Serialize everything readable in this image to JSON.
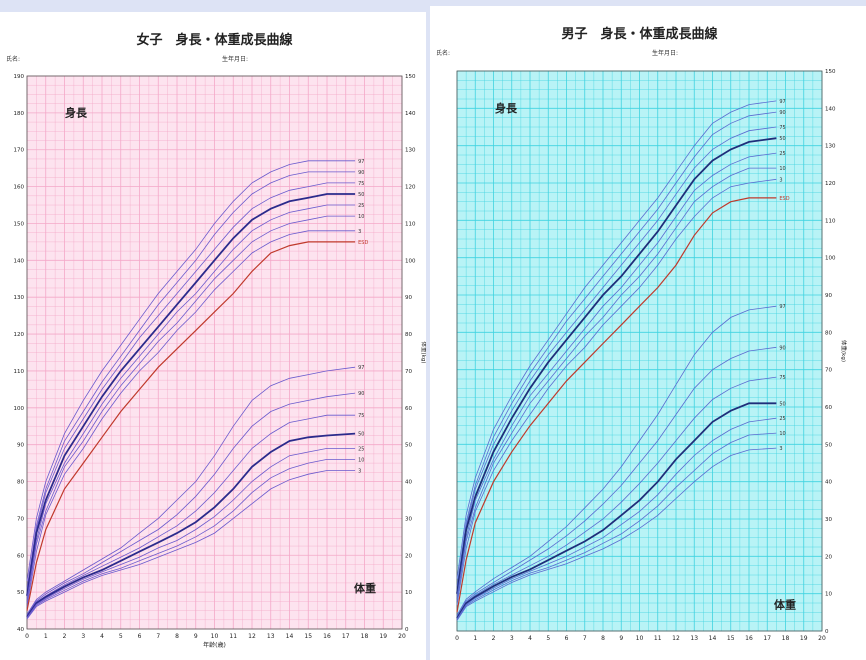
{
  "chart_data": [
    {
      "type": "line",
      "title": "女子　身長・体重成長曲線",
      "name_label": "氏名:",
      "birthdate_label": "生年月日:",
      "height_label": "身長",
      "weight_label": "体重",
      "xlabel": "年齢(歳)",
      "ylabel_right": "体重(kg)",
      "background": "#fde3ef",
      "grid_color": "#f4a8c8",
      "line_color": "#6a5acd",
      "median_color": "#2b2b8c",
      "highlight_color": "#c0392b",
      "xlim": [
        0,
        20
      ],
      "x_ticks": [
        0,
        1,
        2,
        3,
        4,
        5,
        6,
        7,
        8,
        9,
        10,
        11,
        12,
        13,
        14,
        15,
        16,
        17,
        18,
        19,
        20
      ],
      "height_ylim": [
        40,
        190
      ],
      "height_ticks": [
        40,
        50,
        60,
        70,
        80,
        90,
        100,
        110,
        120,
        130,
        140,
        150,
        160,
        170,
        180,
        190
      ],
      "weight_ylim": [
        0,
        150
      ],
      "weight_ticks": [
        0,
        10,
        20,
        30,
        40,
        50,
        60,
        70,
        80,
        90,
        100,
        110,
        120,
        130,
        140,
        150
      ],
      "height_x": [
        0,
        0.5,
        1,
        2,
        3,
        4,
        5,
        6,
        7,
        8,
        9,
        10,
        11,
        12,
        13,
        14,
        15,
        16,
        17.5
      ],
      "height_series": [
        {
          "name": "97",
          "values": [
            53,
            70,
            80,
            93,
            102,
            110,
            117,
            124,
            131,
            137,
            143,
            150,
            156,
            161,
            164,
            166,
            167,
            167,
            167
          ]
        },
        {
          "name": "90",
          "values": [
            51,
            68,
            78,
            91,
            99,
            107,
            114,
            121,
            128,
            134,
            140,
            147,
            153,
            158,
            161,
            163,
            164,
            164,
            164
          ]
        },
        {
          "name": "75",
          "values": [
            50,
            67,
            77,
            89,
            97,
            105,
            112,
            119,
            125,
            131,
            137,
            143,
            149,
            154,
            157,
            159,
            160,
            161,
            161
          ]
        },
        {
          "name": "50",
          "values": [
            49,
            66,
            75,
            87,
            95,
            103,
            110,
            116,
            122,
            128,
            134,
            140,
            146,
            151,
            154,
            156,
            157,
            158,
            158
          ]
        },
        {
          "name": "25",
          "values": [
            48,
            64,
            74,
            85,
            93,
            101,
            108,
            114,
            120,
            126,
            131,
            137,
            143,
            148,
            151,
            153,
            154,
            155,
            155
          ]
        },
        {
          "name": "10",
          "values": [
            47,
            63,
            72,
            84,
            91,
            99,
            106,
            112,
            118,
            123,
            129,
            135,
            140,
            145,
            148,
            150,
            151,
            152,
            152
          ]
        },
        {
          "name": "3",
          "values": [
            46,
            61,
            71,
            82,
            89,
            97,
            104,
            110,
            115,
            121,
            126,
            132,
            137,
            142,
            145,
            147,
            148,
            148,
            148
          ]
        }
      ],
      "height_highlight": {
        "name": "ESD",
        "values": [
          45,
          58,
          67,
          78,
          85,
          92,
          99,
          105,
          111,
          116,
          121,
          126,
          131,
          137,
          142,
          144,
          145,
          145,
          145
        ]
      },
      "weight_x": [
        0,
        0.5,
        1,
        2,
        3,
        4,
        5,
        6,
        7,
        8,
        9,
        10,
        11,
        12,
        13,
        14,
        15,
        16,
        17.5
      ],
      "weight_series": [
        {
          "name": "97",
          "values": [
            4,
            8,
            10,
            13,
            16,
            19,
            22,
            26,
            30,
            35,
            40,
            47,
            55,
            62,
            66,
            68,
            69,
            70,
            71
          ]
        },
        {
          "name": "90",
          "values": [
            3.8,
            7.6,
            9.5,
            12.5,
            15,
            18,
            21,
            24,
            27,
            31,
            36,
            42,
            49,
            55,
            59,
            61,
            62,
            63,
            64
          ]
        },
        {
          "name": "75",
          "values": [
            3.5,
            7.3,
            9,
            12,
            14.5,
            17,
            19.5,
            22,
            25,
            28,
            32,
            37,
            43,
            49,
            53,
            56,
            57,
            58,
            58
          ]
        },
        {
          "name": "50",
          "values": [
            3.3,
            7,
            8.7,
            11.5,
            14,
            16,
            18.5,
            21,
            23.5,
            26,
            29,
            33,
            38,
            44,
            48,
            51,
            52,
            52.5,
            53
          ]
        },
        {
          "name": "25",
          "values": [
            3.1,
            6.7,
            8.3,
            11,
            13.5,
            15.5,
            17.5,
            19.5,
            22,
            24,
            27,
            30.5,
            35,
            40,
            44,
            47,
            48,
            49,
            49
          ]
        },
        {
          "name": "10",
          "values": [
            2.9,
            6.4,
            8,
            10.5,
            13,
            15,
            16.5,
            18.5,
            20.5,
            22.5,
            25,
            28,
            32,
            37,
            41,
            43.5,
            45,
            46,
            46
          ]
        },
        {
          "name": "3",
          "values": [
            2.7,
            6.1,
            7.6,
            10,
            12.5,
            14.5,
            16,
            17.5,
            19.5,
            21.5,
            23.5,
            26,
            30,
            34,
            38,
            40.5,
            42,
            43,
            43
          ]
        }
      ]
    },
    {
      "type": "line",
      "title": "男子　身長・体重成長曲線",
      "name_label": "氏名:",
      "birthdate_label": "生年月日:",
      "height_label": "身長",
      "weight_label": "体重",
      "xlabel": "",
      "ylabel_right": "体重(kg)",
      "background": "#b8f3f6",
      "grid_color": "#3fd3e0",
      "line_color": "#5a6ad0",
      "median_color": "#1f2e7a",
      "highlight_color": "#c0392b",
      "xlim": [
        0,
        20
      ],
      "x_ticks": [
        0,
        1,
        2,
        3,
        4,
        5,
        6,
        7,
        8,
        9,
        10,
        11,
        12,
        13,
        14,
        15,
        16,
        17,
        18,
        19,
        20
      ],
      "weight_ylim": [
        0,
        150
      ],
      "weight_ticks": [
        0,
        10,
        20,
        30,
        40,
        50,
        60,
        70,
        80,
        90,
        100,
        110,
        120,
        130,
        140,
        150
      ],
      "height_ylim": [
        40,
        190
      ],
      "height_x": [
        0,
        0.5,
        1,
        2,
        3,
        4,
        5,
        6,
        7,
        8,
        9,
        10,
        11,
        12,
        13,
        14,
        15,
        16,
        17.5
      ],
      "height_series": [
        {
          "name": "97",
          "values": [
            54,
            71,
            81,
            94,
            103,
            111,
            118,
            125,
            132,
            138,
            144,
            150,
            156,
            163,
            170,
            176,
            179,
            181,
            182
          ]
        },
        {
          "name": "90",
          "values": [
            52,
            69,
            79,
            92,
            101,
            109,
            116,
            123,
            129,
            135,
            141,
            147,
            153,
            160,
            167,
            173,
            176,
            178,
            179
          ]
        },
        {
          "name": "75",
          "values": [
            51,
            68,
            78,
            90,
            99,
            107,
            114,
            120,
            126,
            132,
            138,
            144,
            150,
            157,
            164,
            169,
            172,
            174,
            175
          ]
        },
        {
          "name": "50",
          "values": [
            50,
            67,
            76,
            88,
            97,
            105,
            112,
            118,
            124,
            130,
            135,
            141,
            147,
            154,
            161,
            166,
            169,
            171,
            172
          ]
        },
        {
          "name": "25",
          "values": [
            49,
            65,
            75,
            86,
            95,
            103,
            109,
            115,
            121,
            127,
            132,
            138,
            144,
            151,
            158,
            162,
            165,
            167,
            168
          ]
        },
        {
          "name": "10",
          "values": [
            48,
            64,
            73,
            85,
            93,
            101,
            107,
            113,
            119,
            124,
            130,
            135,
            141,
            148,
            155,
            159,
            162,
            164,
            164
          ]
        },
        {
          "name": "3",
          "values": [
            47,
            62,
            72,
            83,
            91,
            98,
            105,
            111,
            116,
            122,
            127,
            132,
            138,
            145,
            151,
            156,
            159,
            160,
            161
          ]
        }
      ],
      "height_highlight": {
        "name": "ESD",
        "values": [
          45,
          59,
          69,
          80,
          88,
          95,
          101,
          107,
          112,
          117,
          122,
          127,
          132,
          138,
          146,
          152,
          155,
          156,
          156
        ]
      },
      "weight_x": [
        0,
        0.5,
        1,
        2,
        3,
        4,
        5,
        6,
        7,
        8,
        9,
        10,
        11,
        12,
        13,
        14,
        15,
        16,
        17.5
      ],
      "weight_series": [
        {
          "name": "97",
          "values": [
            4.2,
            8.5,
            10.5,
            14,
            17,
            20,
            24,
            28,
            33,
            38,
            44,
            51,
            58,
            66,
            74,
            80,
            84,
            86,
            87
          ]
        },
        {
          "name": "90",
          "values": [
            4,
            8,
            10,
            13,
            16,
            19,
            22,
            25.5,
            29.5,
            34,
            39,
            45,
            51,
            58,
            65,
            70,
            73,
            75,
            76
          ]
        },
        {
          "name": "75",
          "values": [
            3.7,
            7.7,
            9.6,
            12.5,
            15,
            17.5,
            20,
            23,
            26.5,
            30,
            34.5,
            39.5,
            45,
            51,
            57,
            62,
            65,
            67,
            68
          ]
        },
        {
          "name": "50",
          "values": [
            3.4,
            7.4,
            9.2,
            12,
            14.5,
            16.5,
            19,
            21.5,
            24,
            27,
            31,
            35,
            40,
            46,
            51,
            56,
            59,
            61,
            61
          ]
        },
        {
          "name": "25",
          "values": [
            3.2,
            7.1,
            8.8,
            11.5,
            14,
            16,
            18,
            20,
            22.5,
            25,
            28.5,
            32,
            36.5,
            42,
            47,
            51,
            54,
            56,
            57
          ]
        },
        {
          "name": "10",
          "values": [
            3,
            6.8,
            8.4,
            11,
            13.5,
            15.5,
            17,
            19,
            21,
            23.5,
            26,
            29.5,
            33.5,
            38.5,
            43,
            47.5,
            50.5,
            52.5,
            53
          ]
        },
        {
          "name": "3",
          "values": [
            2.8,
            6.5,
            8,
            10.5,
            13,
            15,
            16.5,
            18,
            20,
            22,
            24.5,
            27.5,
            31,
            35.5,
            40,
            44,
            47,
            48.5,
            49
          ]
        }
      ]
    }
  ]
}
